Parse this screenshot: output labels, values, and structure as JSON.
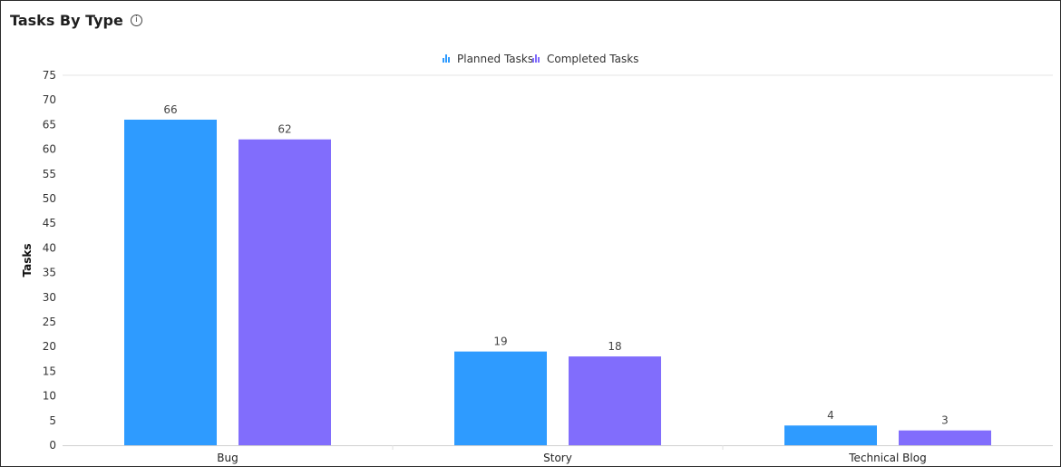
{
  "header": {
    "title": "Tasks By Type",
    "info_icon": "info-icon"
  },
  "chart_data": {
    "type": "bar",
    "categories": [
      "Bug",
      "Story",
      "Technical Blog"
    ],
    "series": [
      {
        "name": "Planned Tasks",
        "values": [
          66,
          19,
          4
        ],
        "color": "#2e9bff"
      },
      {
        "name": "Completed Tasks",
        "values": [
          62,
          18,
          3
        ],
        "color": "#816dfc"
      }
    ],
    "ylabel": "Tasks",
    "xlabel": "",
    "ylim": [
      0,
      75
    ],
    "yticks": [
      0,
      5,
      10,
      15,
      20,
      25,
      30,
      35,
      40,
      45,
      50,
      55,
      60,
      65,
      70,
      75
    ],
    "legend_position": "top-center",
    "grid": false,
    "data_labels": true
  }
}
